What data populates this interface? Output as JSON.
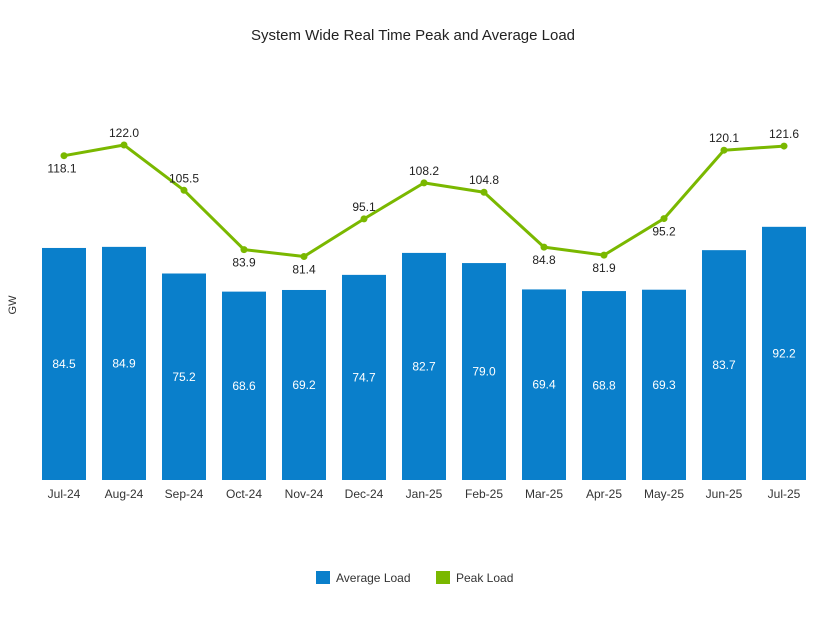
{
  "chart_data": {
    "type": "bar+line",
    "title": "System Wide Real Time Peak and Average Load",
    "xlabel": "",
    "ylabel": "GW",
    "ylim": [
      0,
      175
    ],
    "grid": false,
    "legend_position": "bottom",
    "categories": [
      "Jul-24",
      "Aug-24",
      "Sep-24",
      "Oct-24",
      "Nov-24",
      "Dec-24",
      "Jan-25",
      "Feb-25",
      "Mar-25",
      "Apr-25",
      "May-25",
      "Jun-25",
      "Jul-25"
    ],
    "series": [
      {
        "name": "Average Load",
        "type": "bar",
        "color": "#0a7fcb",
        "values": [
          84.5,
          84.9,
          75.2,
          68.6,
          69.2,
          74.7,
          82.7,
          79.0,
          69.4,
          68.8,
          69.3,
          83.7,
          92.2
        ]
      },
      {
        "name": "Peak Load",
        "type": "line",
        "color": "#7ab800",
        "values": [
          118.1,
          122.0,
          105.5,
          83.9,
          81.4,
          95.1,
          108.2,
          104.8,
          84.8,
          81.9,
          95.2,
          120.1,
          121.6
        ]
      }
    ]
  }
}
